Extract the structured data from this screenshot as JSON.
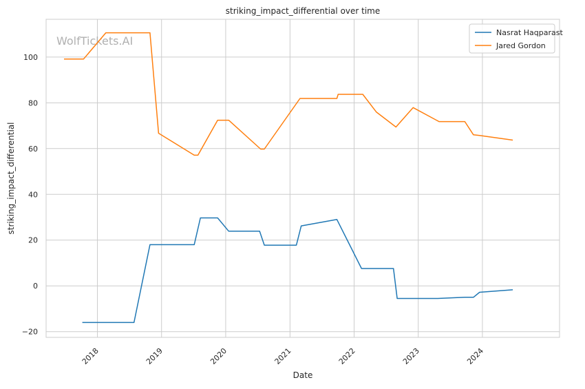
{
  "chart_data": {
    "type": "line",
    "title": "striking_impact_differential over time",
    "xlabel": "Date",
    "ylabel": "striking_impact_differential",
    "watermark": "WolfTickets.AI",
    "x_axis_kind": "date",
    "xlim": [
      "2017-03-15",
      "2025-03-15"
    ],
    "ylim": [
      -22.5,
      116.5
    ],
    "x_ticks": [
      {
        "date": "2018-01-01",
        "label": "2018"
      },
      {
        "date": "2019-01-01",
        "label": "2019"
      },
      {
        "date": "2020-01-01",
        "label": "2020"
      },
      {
        "date": "2021-01-01",
        "label": "2021"
      },
      {
        "date": "2022-01-01",
        "label": "2022"
      },
      {
        "date": "2023-01-01",
        "label": "2023"
      },
      {
        "date": "2024-01-01",
        "label": "2024"
      }
    ],
    "y_ticks": [
      -20,
      0,
      20,
      40,
      60,
      80,
      100
    ],
    "y_tick_labels": [
      "−20",
      "0",
      "20",
      "40",
      "60",
      "80",
      "100"
    ],
    "grid": true,
    "legend_position": "top-right",
    "series": [
      {
        "name": "Nasrat Haqparast",
        "color": "#1f77b4",
        "points": [
          {
            "x": "2017-10-07",
            "y": -16
          },
          {
            "x": "2018-07-28",
            "y": -16
          },
          {
            "x": "2018-10-27",
            "y": 18
          },
          {
            "x": "2019-07-06",
            "y": 18
          },
          {
            "x": "2019-08-10",
            "y": 29.7
          },
          {
            "x": "2019-11-16",
            "y": 29.7
          },
          {
            "x": "2020-01-18",
            "y": 23.9
          },
          {
            "x": "2020-07-12",
            "y": 23.9
          },
          {
            "x": "2020-08-08",
            "y": 17.8
          },
          {
            "x": "2021-02-06",
            "y": 17.8
          },
          {
            "x": "2021-03-06",
            "y": 26.2
          },
          {
            "x": "2021-09-25",
            "y": 29
          },
          {
            "x": "2022-02-12",
            "y": 7.6
          },
          {
            "x": "2022-08-13",
            "y": 7.6
          },
          {
            "x": "2022-09-03",
            "y": -5.5
          },
          {
            "x": "2023-04-22",
            "y": -5.5
          },
          {
            "x": "2023-09-23",
            "y": -5
          },
          {
            "x": "2023-11-11",
            "y": -5
          },
          {
            "x": "2023-12-16",
            "y": -2.8
          },
          {
            "x": "2024-06-22",
            "y": -1.7
          }
        ]
      },
      {
        "name": "Jared Gordon",
        "color": "#ff7f0e",
        "points": [
          {
            "x": "2017-06-25",
            "y": 99.1
          },
          {
            "x": "2017-10-14",
            "y": 99.1
          },
          {
            "x": "2018-02-18",
            "y": 110.6
          },
          {
            "x": "2018-10-27",
            "y": 110.6
          },
          {
            "x": "2018-12-15",
            "y": 66.7
          },
          {
            "x": "2019-07-06",
            "y": 57.1
          },
          {
            "x": "2019-07-27",
            "y": 57.1
          },
          {
            "x": "2019-11-16",
            "y": 72.4
          },
          {
            "x": "2020-01-18",
            "y": 72.4
          },
          {
            "x": "2020-07-18",
            "y": 59.8
          },
          {
            "x": "2020-08-08",
            "y": 59.8
          },
          {
            "x": "2021-02-27",
            "y": 81.9
          },
          {
            "x": "2021-09-25",
            "y": 81.9
          },
          {
            "x": "2021-10-02",
            "y": 83.7
          },
          {
            "x": "2022-02-19",
            "y": 83.7
          },
          {
            "x": "2022-05-07",
            "y": 76
          },
          {
            "x": "2022-08-27",
            "y": 69.4
          },
          {
            "x": "2022-12-03",
            "y": 77.9
          },
          {
            "x": "2023-04-29",
            "y": 71.8
          },
          {
            "x": "2023-09-23",
            "y": 71.8
          },
          {
            "x": "2023-11-11",
            "y": 66
          },
          {
            "x": "2023-12-16",
            "y": 65.7
          },
          {
            "x": "2024-06-22",
            "y": 63.7
          }
        ]
      }
    ]
  }
}
